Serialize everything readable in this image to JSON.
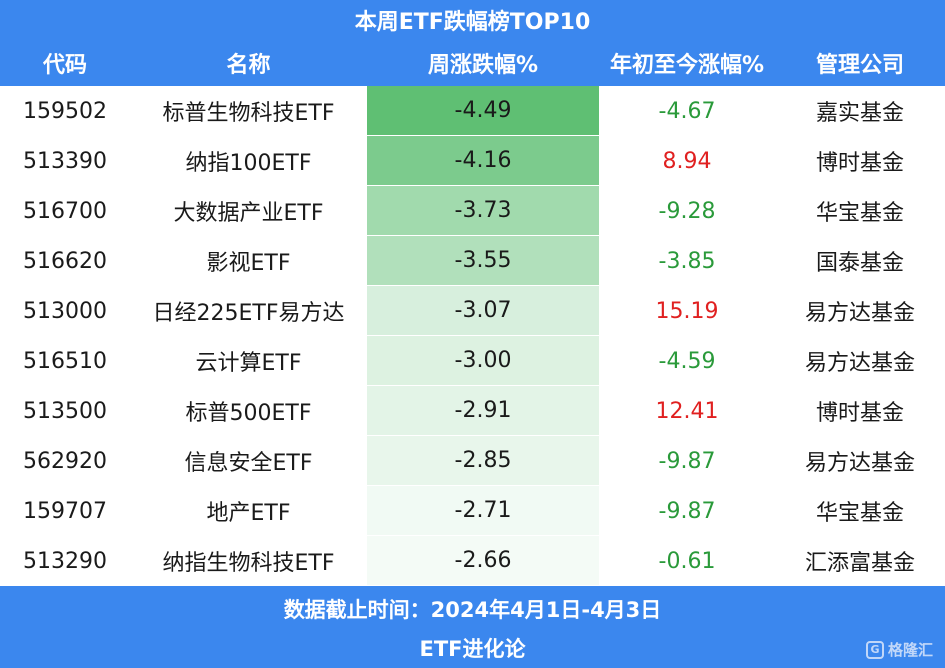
{
  "chart_data": {
    "type": "table",
    "title": "本周ETF跌幅榜TOP10",
    "columns": [
      "代码",
      "名称",
      "周涨跌幅%",
      "年初至今涨幅%",
      "管理公司"
    ],
    "rows": [
      {
        "code": "159502",
        "name": "标普生物科技ETF",
        "weekly": "-4.49",
        "ytd": "-4.67",
        "company": "嘉实基金"
      },
      {
        "code": "513390",
        "name": "纳指100ETF",
        "weekly": "-4.16",
        "ytd": "8.94",
        "company": "博时基金"
      },
      {
        "code": "516700",
        "name": "大数据产业ETF",
        "weekly": "-3.73",
        "ytd": "-9.28",
        "company": "华宝基金"
      },
      {
        "code": "516620",
        "name": "影视ETF",
        "weekly": "-3.55",
        "ytd": "-3.85",
        "company": "国泰基金"
      },
      {
        "code": "513000",
        "name": "日经225ETF易方达",
        "weekly": "-3.07",
        "ytd": "15.19",
        "company": "易方达基金"
      },
      {
        "code": "516510",
        "name": "云计算ETF",
        "weekly": "-3.00",
        "ytd": "-4.59",
        "company": "易方达基金"
      },
      {
        "code": "513500",
        "name": "标普500ETF",
        "weekly": "-2.91",
        "ytd": "12.41",
        "company": "博时基金"
      },
      {
        "code": "562920",
        "name": "信息安全ETF",
        "weekly": "-2.85",
        "ytd": "-9.87",
        "company": "易方达基金"
      },
      {
        "code": "159707",
        "name": "地产ETF",
        "weekly": "-2.71",
        "ytd": "-9.87",
        "company": "华宝基金"
      },
      {
        "code": "513290",
        "name": "纳指生物科技ETF",
        "weekly": "-2.66",
        "ytd": "-0.61",
        "company": "汇添富基金"
      }
    ]
  },
  "footer": {
    "date_note": "数据截止时间：2024年4月1日-4月3日",
    "source": "ETF进化论"
  },
  "watermark": {
    "text": "格隆汇",
    "logo_glyph": "G"
  },
  "colors": {
    "header_bg": "#3b87ee",
    "positive": "#e02020",
    "negative": "#2a9a3a",
    "heat_strong": "#5fbf73",
    "heat_weak": "#f4fbf6"
  }
}
